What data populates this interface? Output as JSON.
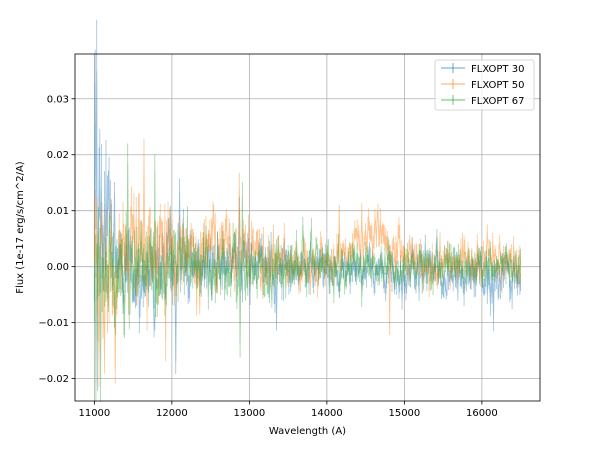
{
  "chart_data": {
    "type": "line",
    "title": "",
    "xlabel": "Wavelength (A)",
    "ylabel": "Flux (1e-17 erg/s/cm^2/A)",
    "xlim": [
      10750,
      16750
    ],
    "ylim": [
      -0.024,
      0.038
    ],
    "x_ticks": [
      11000,
      12000,
      13000,
      14000,
      15000,
      16000
    ],
    "y_ticks": [
      -0.02,
      -0.01,
      0.0,
      0.01,
      0.02,
      0.03
    ],
    "x_tick_labels": [
      "11000",
      "12000",
      "13000",
      "14000",
      "15000",
      "16000"
    ],
    "y_tick_labels": [
      "−0.02",
      "−0.01",
      "0.00",
      "0.01",
      "0.02",
      "0.03"
    ],
    "grid": true,
    "legend_position": "top-right",
    "x_range": [
      11000,
      16500
    ],
    "x_step": 10,
    "series": [
      {
        "name": "FLXOPT 30",
        "color": "#1f77b4",
        "alpha": 0.45,
        "envelope": [
          [
            11000,
            0.0
          ],
          [
            11060,
            0.012
          ],
          [
            11150,
            0.006
          ],
          [
            11300,
            0.0
          ],
          [
            11700,
            -0.001
          ],
          [
            12300,
            0.0
          ],
          [
            13000,
            0.0
          ],
          [
            13600,
            0.0
          ],
          [
            14500,
            -0.001
          ],
          [
            15300,
            -0.001
          ],
          [
            16000,
            -0.002
          ],
          [
            16500,
            -0.002
          ]
        ],
        "noise": [
          [
            11000,
            0.016
          ],
          [
            11050,
            0.018
          ],
          [
            11120,
            0.011
          ],
          [
            11250,
            0.006
          ],
          [
            11800,
            0.0055
          ],
          [
            12500,
            0.0045
          ],
          [
            13000,
            0.0038
          ],
          [
            14000,
            0.003
          ],
          [
            15000,
            0.0032
          ],
          [
            16000,
            0.0034
          ],
          [
            16500,
            0.0035
          ]
        ],
        "spikes": [
          [
            11010,
            0.033
          ],
          [
            11030,
            0.035
          ],
          [
            11070,
            0.0165
          ],
          [
            11090,
            0.014
          ],
          [
            11260,
            0.013
          ],
          [
            12050,
            -0.017
          ],
          [
            12100,
            0.0135
          ],
          [
            11980,
            0.009
          ],
          [
            13350,
            -0.01
          ],
          [
            16150,
            -0.0095
          ],
          [
            15420,
            0.0055
          ],
          [
            12870,
            0.0105
          ]
        ]
      },
      {
        "name": "FLXOPT 50",
        "color": "#ff7f0e",
        "alpha": 0.45,
        "envelope": [
          [
            11000,
            0.0
          ],
          [
            11300,
            0.001
          ],
          [
            11650,
            0.004
          ],
          [
            12100,
            0.003
          ],
          [
            12800,
            0.004
          ],
          [
            13200,
            0.001
          ],
          [
            13700,
            0.0
          ],
          [
            14200,
            0.002
          ],
          [
            14600,
            0.0055
          ],
          [
            14800,
            0.004
          ],
          [
            15200,
            0.001
          ],
          [
            15800,
            0.001
          ],
          [
            16200,
            0.001
          ],
          [
            16500,
            0.0
          ]
        ],
        "noise": [
          [
            11000,
            0.011
          ],
          [
            11200,
            0.009
          ],
          [
            11600,
            0.008
          ],
          [
            12200,
            0.0055
          ],
          [
            12900,
            0.005
          ],
          [
            13500,
            0.0035
          ],
          [
            14300,
            0.0032
          ],
          [
            14800,
            0.0035
          ],
          [
            15500,
            0.003
          ],
          [
            16500,
            0.003
          ]
        ],
        "spikes": [
          [
            11060,
            -0.017
          ],
          [
            11130,
            -0.0165
          ],
          [
            11270,
            -0.0185
          ],
          [
            11640,
            0.02
          ],
          [
            11920,
            -0.013
          ],
          [
            12870,
            0.014
          ],
          [
            14160,
            0.01
          ],
          [
            14450,
            0.01
          ],
          [
            14660,
            0.01
          ],
          [
            14810,
            -0.011
          ],
          [
            15750,
            0.0045
          ]
        ]
      },
      {
        "name": "FLXOPT 67",
        "color": "#2ca02c",
        "alpha": 0.45,
        "envelope": [
          [
            11000,
            0.0
          ],
          [
            11400,
            0.0
          ],
          [
            12000,
            -0.001
          ],
          [
            12600,
            0.0
          ],
          [
            13200,
            0.0
          ],
          [
            13900,
            0.0
          ],
          [
            14600,
            0.0
          ],
          [
            15300,
            0.0
          ],
          [
            16000,
            0.0
          ],
          [
            16500,
            0.0
          ]
        ],
        "noise": [
          [
            11000,
            0.009
          ],
          [
            11200,
            0.0085
          ],
          [
            11500,
            0.007
          ],
          [
            12000,
            0.005
          ],
          [
            12800,
            0.0045
          ],
          [
            13500,
            0.0038
          ],
          [
            14500,
            0.003
          ],
          [
            15500,
            0.0028
          ],
          [
            16500,
            0.0028
          ]
        ],
        "spikes": [
          [
            11020,
            -0.021
          ],
          [
            11080,
            -0.02
          ],
          [
            11430,
            0.0185
          ],
          [
            11780,
            0.017
          ],
          [
            12880,
            -0.014
          ],
          [
            12200,
            0.009
          ],
          [
            12910,
            0.0125
          ],
          [
            13690,
            0.0075
          ],
          [
            13800,
            0.007
          ],
          [
            15600,
            0.0025
          ]
        ]
      }
    ]
  }
}
